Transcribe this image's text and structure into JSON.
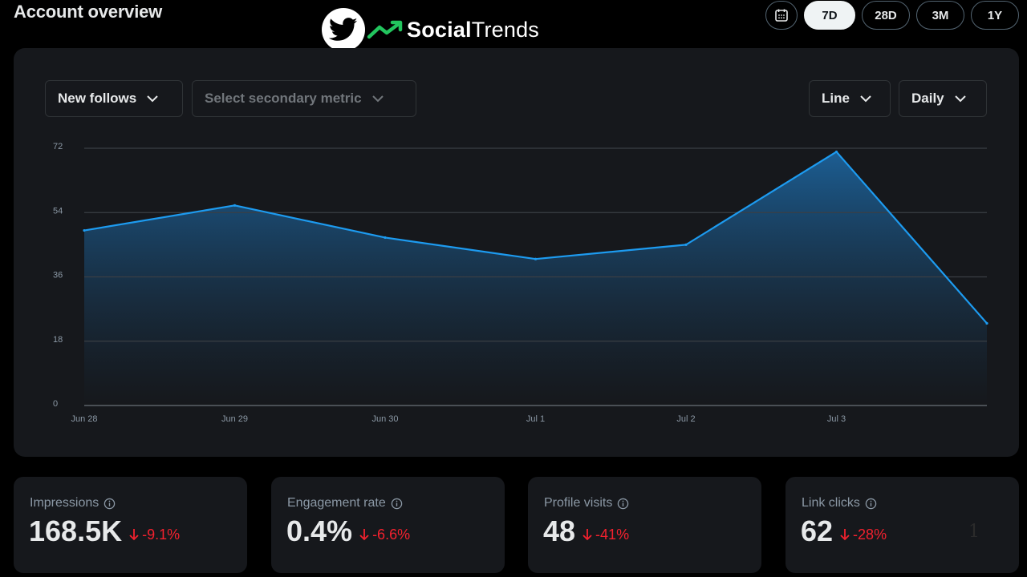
{
  "header": {
    "title": "Account overview",
    "brand_bold": "Social",
    "brand_light": "Trends"
  },
  "range": {
    "options": [
      "7D",
      "28D",
      "3M",
      "1Y"
    ],
    "selected": "7D"
  },
  "chart_controls": {
    "primary_metric": "New follows",
    "secondary_metric_placeholder": "Select secondary metric",
    "chart_type": "Line",
    "interval": "Daily"
  },
  "chart_data": {
    "type": "area",
    "x": [
      "Jun 28",
      "Jun 29",
      "Jun 30",
      "Jul 1",
      "Jul 2",
      "Jul 3",
      ""
    ],
    "series": [
      {
        "values": [
          49,
          56,
          47,
          41,
          45,
          71,
          23
        ]
      }
    ],
    "yticks": [
      72,
      54,
      36,
      18,
      0
    ],
    "ylim": [
      0,
      72
    ],
    "grid": true,
    "line_color": "#1d9bf0"
  },
  "stats": [
    {
      "label": "Impressions",
      "value": "168.5K",
      "delta": "-9.1%"
    },
    {
      "label": "Engagement rate",
      "value": "0.4%",
      "delta": "-6.6%"
    },
    {
      "label": "Profile visits",
      "value": "48",
      "delta": "-41%"
    },
    {
      "label": "Link clicks",
      "value": "62",
      "delta": "-28%"
    }
  ],
  "page_number": "1"
}
